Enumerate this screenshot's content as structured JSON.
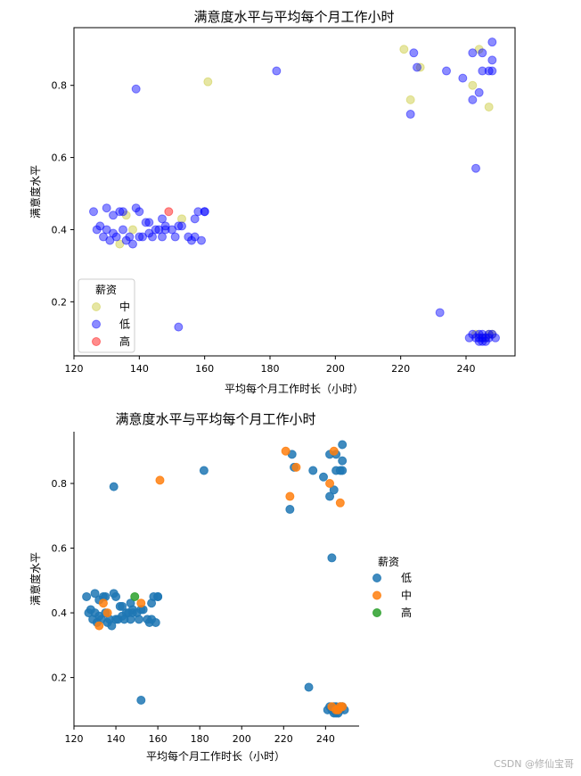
{
  "watermark": "CSDN @修仙宝哥",
  "colors": {
    "中_top": "#c8c832",
    "低_top": "#0000ff",
    "高_top": "#ff0000",
    "低_bot": "#1f77b4",
    "中_bot": "#ff7f0e",
    "高_bot": "#2ca02c"
  },
  "chart_data": [
    {
      "type": "scatter",
      "title": "满意度水平与平均每个月工作小时",
      "xlabel": "平均每个月工作时长（小时）",
      "ylabel": "满意度水平",
      "xlim": [
        120,
        255
      ],
      "ylim": [
        0.05,
        0.96
      ],
      "xticks": [
        120,
        140,
        160,
        180,
        200,
        220,
        240
      ],
      "yticks": [
        0.2,
        0.4,
        0.6,
        0.8
      ],
      "legend": {
        "title": "薪资",
        "placement": "lower-left"
      },
      "series": [
        {
          "name": "中",
          "points": [
            [
              134,
              0.36
            ],
            [
              136,
              0.44
            ],
            [
              138,
              0.4
            ],
            [
              153,
              0.43
            ],
            [
              161,
              0.81
            ],
            [
              221,
              0.9
            ],
            [
              223,
              0.76
            ],
            [
              226,
              0.85
            ],
            [
              242,
              0.8
            ],
            [
              244,
              0.9
            ],
            [
              247,
              0.74
            ],
            [
              243,
              0.11
            ],
            [
              245,
              0.1
            ],
            [
              246,
              0.1
            ],
            [
              247,
              0.11
            ],
            [
              248,
              0.11
            ]
          ]
        },
        {
          "name": "低",
          "points": [
            [
              126,
              0.45
            ],
            [
              127,
              0.4
            ],
            [
              128,
              0.41
            ],
            [
              129,
              0.38
            ],
            [
              130,
              0.46
            ],
            [
              130,
              0.4
            ],
            [
              131,
              0.37
            ],
            [
              132,
              0.39
            ],
            [
              132,
              0.44
            ],
            [
              133,
              0.38
            ],
            [
              134,
              0.45
            ],
            [
              135,
              0.4
            ],
            [
              135,
              0.45
            ],
            [
              136,
              0.37
            ],
            [
              137,
              0.38
            ],
            [
              138,
              0.36
            ],
            [
              139,
              0.46
            ],
            [
              140,
              0.45
            ],
            [
              140,
              0.38
            ],
            [
              141,
              0.38
            ],
            [
              142,
              0.42
            ],
            [
              143,
              0.42
            ],
            [
              143,
              0.39
            ],
            [
              144,
              0.38
            ],
            [
              145,
              0.4
            ],
            [
              146,
              0.4
            ],
            [
              147,
              0.43
            ],
            [
              147,
              0.38
            ],
            [
              148,
              0.4
            ],
            [
              148,
              0.41
            ],
            [
              150,
              0.4
            ],
            [
              151,
              0.38
            ],
            [
              152,
              0.41
            ],
            [
              153,
              0.41
            ],
            [
              155,
              0.38
            ],
            [
              156,
              0.37
            ],
            [
              157,
              0.43
            ],
            [
              157,
              0.38
            ],
            [
              158,
              0.45
            ],
            [
              159,
              0.37
            ],
            [
              160,
              0.45
            ],
            [
              160,
              0.45
            ],
            [
              139,
              0.79
            ],
            [
              152,
              0.13
            ],
            [
              182,
              0.84
            ],
            [
              223,
              0.72
            ],
            [
              224,
              0.89
            ],
            [
              225,
              0.85
            ],
            [
              234,
              0.84
            ],
            [
              239,
              0.82
            ],
            [
              242,
              0.76
            ],
            [
              242,
              0.89
            ],
            [
              244,
              0.78
            ],
            [
              245,
              0.84
            ],
            [
              245,
              0.89
            ],
            [
              247,
              0.84
            ],
            [
              248,
              0.92
            ],
            [
              248,
              0.87
            ],
            [
              248,
              0.84
            ],
            [
              243,
              0.57
            ],
            [
              232,
              0.17
            ],
            [
              241,
              0.1
            ],
            [
              242,
              0.11
            ],
            [
              243,
              0.1
            ],
            [
              244,
              0.09
            ],
            [
              244,
              0.11
            ],
            [
              245,
              0.1
            ],
            [
              245,
              0.11
            ],
            [
              246,
              0.09
            ],
            [
              246,
              0.1
            ],
            [
              247,
              0.1
            ],
            [
              248,
              0.11
            ],
            [
              249,
              0.1
            ],
            [
              244,
              0.1
            ],
            [
              245,
              0.09
            ],
            [
              247,
              0.11
            ]
          ]
        },
        {
          "name": "高",
          "points": [
            [
              149,
              0.45
            ]
          ]
        }
      ]
    },
    {
      "type": "scatter",
      "title": "满意度水平与平均每个月工作小时",
      "xlabel": "平均每个月工作时长（小时）",
      "ylabel": "满意度水平",
      "xlim": [
        120,
        256
      ],
      "ylim": [
        0.05,
        0.96
      ],
      "xticks": [
        120,
        140,
        160,
        180,
        200,
        220,
        240
      ],
      "yticks": [
        0.2,
        0.4,
        0.6,
        0.8
      ],
      "legend": {
        "title": "薪资",
        "placement": "outside-right"
      },
      "series": [
        {
          "name": "低",
          "points": [
            [
              126,
              0.45
            ],
            [
              127,
              0.4
            ],
            [
              128,
              0.41
            ],
            [
              129,
              0.38
            ],
            [
              130,
              0.46
            ],
            [
              130,
              0.4
            ],
            [
              131,
              0.37
            ],
            [
              132,
              0.39
            ],
            [
              132,
              0.44
            ],
            [
              133,
              0.38
            ],
            [
              134,
              0.45
            ],
            [
              135,
              0.4
            ],
            [
              135,
              0.45
            ],
            [
              136,
              0.37
            ],
            [
              137,
              0.38
            ],
            [
              138,
              0.36
            ],
            [
              139,
              0.46
            ],
            [
              140,
              0.45
            ],
            [
              140,
              0.38
            ],
            [
              141,
              0.38
            ],
            [
              142,
              0.42
            ],
            [
              143,
              0.42
            ],
            [
              143,
              0.39
            ],
            [
              144,
              0.38
            ],
            [
              145,
              0.4
            ],
            [
              146,
              0.4
            ],
            [
              147,
              0.43
            ],
            [
              147,
              0.38
            ],
            [
              148,
              0.4
            ],
            [
              148,
              0.41
            ],
            [
              150,
              0.4
            ],
            [
              151,
              0.38
            ],
            [
              152,
              0.41
            ],
            [
              153,
              0.41
            ],
            [
              155,
              0.38
            ],
            [
              156,
              0.37
            ],
            [
              157,
              0.43
            ],
            [
              157,
              0.38
            ],
            [
              158,
              0.45
            ],
            [
              159,
              0.37
            ],
            [
              160,
              0.45
            ],
            [
              160,
              0.45
            ],
            [
              139,
              0.79
            ],
            [
              152,
              0.13
            ],
            [
              182,
              0.84
            ],
            [
              223,
              0.72
            ],
            [
              224,
              0.89
            ],
            [
              225,
              0.85
            ],
            [
              234,
              0.84
            ],
            [
              239,
              0.82
            ],
            [
              242,
              0.76
            ],
            [
              242,
              0.89
            ],
            [
              244,
              0.78
            ],
            [
              245,
              0.84
            ],
            [
              245,
              0.89
            ],
            [
              247,
              0.84
            ],
            [
              248,
              0.92
            ],
            [
              248,
              0.87
            ],
            [
              248,
              0.84
            ],
            [
              243,
              0.57
            ],
            [
              232,
              0.17
            ],
            [
              241,
              0.1
            ],
            [
              242,
              0.11
            ],
            [
              243,
              0.1
            ],
            [
              244,
              0.09
            ],
            [
              244,
              0.11
            ],
            [
              245,
              0.1
            ],
            [
              245,
              0.11
            ],
            [
              246,
              0.09
            ],
            [
              246,
              0.1
            ],
            [
              247,
              0.1
            ],
            [
              248,
              0.11
            ],
            [
              249,
              0.1
            ],
            [
              244,
              0.1
            ],
            [
              245,
              0.09
            ],
            [
              247,
              0.11
            ]
          ]
        },
        {
          "name": "中",
          "points": [
            [
              132,
              0.36
            ],
            [
              134,
              0.43
            ],
            [
              136,
              0.4
            ],
            [
              152,
              0.43
            ],
            [
              161,
              0.81
            ],
            [
              221,
              0.9
            ],
            [
              223,
              0.76
            ],
            [
              226,
              0.85
            ],
            [
              242,
              0.8
            ],
            [
              244,
              0.9
            ],
            [
              247,
              0.74
            ],
            [
              243,
              0.11
            ],
            [
              245,
              0.1
            ],
            [
              246,
              0.1
            ],
            [
              247,
              0.11
            ],
            [
              248,
              0.11
            ]
          ]
        },
        {
          "name": "高",
          "points": [
            [
              149,
              0.45
            ]
          ]
        }
      ]
    }
  ]
}
